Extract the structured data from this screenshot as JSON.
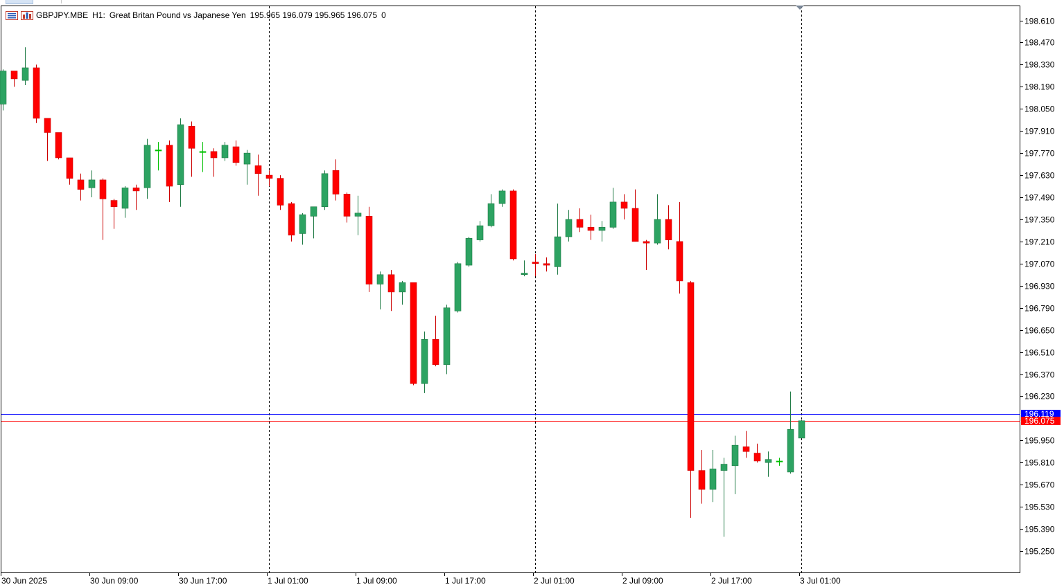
{
  "header": {
    "symbol": "GBPJPY.MBE",
    "timeframe": "H1:",
    "description": "Great Britan Pound vs Japanese Yen",
    "ohlc": "195.965 196.079 195.965 196.075",
    "volume": "0",
    "icons": [
      "chart-list-icon",
      "chart-bars-icon"
    ]
  },
  "colors": {
    "bull": "#2da362",
    "bull_border": "#1f7a45",
    "bear": "#ff0000",
    "bear_border": "#cc0000",
    "ask_line": "#0000ff",
    "bid_line": "#ff0000",
    "axis": "#000000",
    "separator": "#000000",
    "doji": "#00c000"
  },
  "chart_data": {
    "type": "candlestick",
    "price_axis": {
      "min": 195.2,
      "max": 198.7,
      "ticks": [
        "198.610",
        "198.470",
        "198.330",
        "198.190",
        "198.050",
        "197.910",
        "197.770",
        "197.630",
        "197.490",
        "197.350",
        "197.210",
        "197.070",
        "196.930",
        "196.790",
        "196.650",
        "196.510",
        "196.370",
        "196.230",
        "195.950",
        "195.810",
        "195.670",
        "195.530",
        "195.390",
        "195.250"
      ]
    },
    "time_axis": {
      "labels": [
        {
          "text": "30 Jun 2025",
          "bar": 0
        },
        {
          "text": "30 Jun 09:00",
          "bar": 8
        },
        {
          "text": "30 Jun 17:00",
          "bar": 16
        },
        {
          "text": "1 Jul 01:00",
          "bar": 24
        },
        {
          "text": "1 Jul 09:00",
          "bar": 32
        },
        {
          "text": "1 Jul 17:00",
          "bar": 40
        },
        {
          "text": "2 Jul 01:00",
          "bar": 48
        },
        {
          "text": "2 Jul 09:00",
          "bar": 56
        },
        {
          "text": "2 Jul 17:00",
          "bar": 64
        },
        {
          "text": "3 Jul 01:00",
          "bar": 72
        }
      ],
      "day_separators": [
        23,
        47,
        71
      ]
    },
    "price_lines": [
      {
        "label": "196.119",
        "value": 196.119,
        "kind": "ask"
      },
      {
        "label": "196.075",
        "value": 196.075,
        "kind": "bid"
      }
    ],
    "candles": [
      {
        "o": 198.08,
        "h": 198.3,
        "l": 198.04,
        "c": 198.29
      },
      {
        "o": 198.29,
        "h": 198.29,
        "l": 198.19,
        "c": 198.24
      },
      {
        "o": 198.23,
        "h": 198.44,
        "l": 198.2,
        "c": 198.31
      },
      {
        "o": 198.31,
        "h": 198.33,
        "l": 197.96,
        "c": 197.99
      },
      {
        "o": 197.99,
        "h": 197.99,
        "l": 197.72,
        "c": 197.9
      },
      {
        "o": 197.9,
        "h": 197.9,
        "l": 197.73,
        "c": 197.74
      },
      {
        "o": 197.74,
        "h": 197.74,
        "l": 197.57,
        "c": 197.61
      },
      {
        "o": 197.6,
        "h": 197.64,
        "l": 197.47,
        "c": 197.54
      },
      {
        "o": 197.55,
        "h": 197.66,
        "l": 197.49,
        "c": 197.6
      },
      {
        "o": 197.6,
        "h": 197.61,
        "l": 197.22,
        "c": 197.48
      },
      {
        "o": 197.47,
        "h": 197.48,
        "l": 197.29,
        "c": 197.43
      },
      {
        "o": 197.42,
        "h": 197.56,
        "l": 197.36,
        "c": 197.55
      },
      {
        "o": 197.55,
        "h": 197.57,
        "l": 197.41,
        "c": 197.53
      },
      {
        "o": 197.55,
        "h": 197.86,
        "l": 197.48,
        "c": 197.82
      },
      {
        "o": 197.79,
        "h": 197.84,
        "l": 197.66,
        "c": 197.79
      },
      {
        "o": 197.82,
        "h": 197.85,
        "l": 197.46,
        "c": 197.56
      },
      {
        "o": 197.57,
        "h": 197.99,
        "l": 197.43,
        "c": 197.95
      },
      {
        "o": 197.94,
        "h": 197.97,
        "l": 197.62,
        "c": 197.8
      },
      {
        "o": 197.78,
        "h": 197.84,
        "l": 197.65,
        "c": 197.78
      },
      {
        "o": 197.78,
        "h": 197.8,
        "l": 197.62,
        "c": 197.74
      },
      {
        "o": 197.74,
        "h": 197.84,
        "l": 197.72,
        "c": 197.82
      },
      {
        "o": 197.81,
        "h": 197.85,
        "l": 197.69,
        "c": 197.71
      },
      {
        "o": 197.7,
        "h": 197.79,
        "l": 197.57,
        "c": 197.77
      },
      {
        "o": 197.69,
        "h": 197.76,
        "l": 197.5,
        "c": 197.64
      },
      {
        "o": 197.63,
        "h": 197.66,
        "l": 197.56,
        "c": 197.61
      },
      {
        "o": 197.61,
        "h": 197.63,
        "l": 197.41,
        "c": 197.44
      },
      {
        "o": 197.45,
        "h": 197.46,
        "l": 197.21,
        "c": 197.25
      },
      {
        "o": 197.26,
        "h": 197.39,
        "l": 197.19,
        "c": 197.38
      },
      {
        "o": 197.37,
        "h": 197.43,
        "l": 197.23,
        "c": 197.43
      },
      {
        "o": 197.43,
        "h": 197.66,
        "l": 197.41,
        "c": 197.64
      },
      {
        "o": 197.66,
        "h": 197.73,
        "l": 197.47,
        "c": 197.51
      },
      {
        "o": 197.51,
        "h": 197.52,
        "l": 197.33,
        "c": 197.37
      },
      {
        "o": 197.37,
        "h": 197.5,
        "l": 197.25,
        "c": 197.39
      },
      {
        "o": 197.37,
        "h": 197.43,
        "l": 196.89,
        "c": 196.94
      },
      {
        "o": 196.94,
        "h": 197.02,
        "l": 196.78,
        "c": 197.0
      },
      {
        "o": 197.0,
        "h": 197.03,
        "l": 196.77,
        "c": 196.89
      },
      {
        "o": 196.89,
        "h": 196.96,
        "l": 196.81,
        "c": 196.95
      },
      {
        "o": 196.95,
        "h": 196.95,
        "l": 196.3,
        "c": 196.31
      },
      {
        "o": 196.31,
        "h": 196.64,
        "l": 196.25,
        "c": 196.59
      },
      {
        "o": 196.59,
        "h": 196.74,
        "l": 196.42,
        "c": 196.43
      },
      {
        "o": 196.43,
        "h": 196.81,
        "l": 196.37,
        "c": 196.79
      },
      {
        "o": 196.77,
        "h": 197.08,
        "l": 196.76,
        "c": 197.07
      },
      {
        "o": 197.06,
        "h": 197.24,
        "l": 197.05,
        "c": 197.23
      },
      {
        "o": 197.22,
        "h": 197.34,
        "l": 197.21,
        "c": 197.31
      },
      {
        "o": 197.31,
        "h": 197.51,
        "l": 197.3,
        "c": 197.45
      },
      {
        "o": 197.45,
        "h": 197.54,
        "l": 197.43,
        "c": 197.53
      },
      {
        "o": 197.53,
        "h": 197.54,
        "l": 197.09,
        "c": 197.1
      },
      {
        "o": 197.0,
        "h": 197.09,
        "l": 196.99,
        "c": 197.01
      },
      {
        "o": 197.08,
        "h": 197.13,
        "l": 196.99,
        "c": 197.07
      },
      {
        "o": 197.07,
        "h": 197.11,
        "l": 197.02,
        "c": 197.06
      },
      {
        "o": 197.05,
        "h": 197.45,
        "l": 197.0,
        "c": 197.24
      },
      {
        "o": 197.24,
        "h": 197.41,
        "l": 197.21,
        "c": 197.35
      },
      {
        "o": 197.35,
        "h": 197.42,
        "l": 197.27,
        "c": 197.3
      },
      {
        "o": 197.3,
        "h": 197.38,
        "l": 197.22,
        "c": 197.28
      },
      {
        "o": 197.28,
        "h": 197.34,
        "l": 197.21,
        "c": 197.3
      },
      {
        "o": 197.3,
        "h": 197.55,
        "l": 197.29,
        "c": 197.46
      },
      {
        "o": 197.46,
        "h": 197.51,
        "l": 197.35,
        "c": 197.42
      },
      {
        "o": 197.42,
        "h": 197.54,
        "l": 197.21,
        "c": 197.21
      },
      {
        "o": 197.21,
        "h": 197.22,
        "l": 197.03,
        "c": 197.2
      },
      {
        "o": 197.2,
        "h": 197.51,
        "l": 197.19,
        "c": 197.35
      },
      {
        "o": 197.35,
        "h": 197.44,
        "l": 197.16,
        "c": 197.22
      },
      {
        "o": 197.21,
        "h": 197.46,
        "l": 196.88,
        "c": 196.96
      },
      {
        "o": 196.95,
        "h": 196.96,
        "l": 195.46,
        "c": 195.76
      },
      {
        "o": 195.76,
        "h": 195.89,
        "l": 195.55,
        "c": 195.64
      },
      {
        "o": 195.64,
        "h": 195.89,
        "l": 195.56,
        "c": 195.77
      },
      {
        "o": 195.76,
        "h": 195.84,
        "l": 195.34,
        "c": 195.8
      },
      {
        "o": 195.79,
        "h": 195.98,
        "l": 195.61,
        "c": 195.92
      },
      {
        "o": 195.91,
        "h": 196.01,
        "l": 195.84,
        "c": 195.88
      },
      {
        "o": 195.87,
        "h": 195.93,
        "l": 195.81,
        "c": 195.82
      },
      {
        "o": 195.81,
        "h": 195.88,
        "l": 195.72,
        "c": 195.83
      },
      {
        "o": 195.82,
        "h": 195.84,
        "l": 195.79,
        "c": 195.82
      },
      {
        "o": 195.75,
        "h": 196.26,
        "l": 195.74,
        "c": 196.02
      },
      {
        "o": 195.965,
        "h": 196.079,
        "l": 195.965,
        "c": 196.075
      }
    ]
  }
}
